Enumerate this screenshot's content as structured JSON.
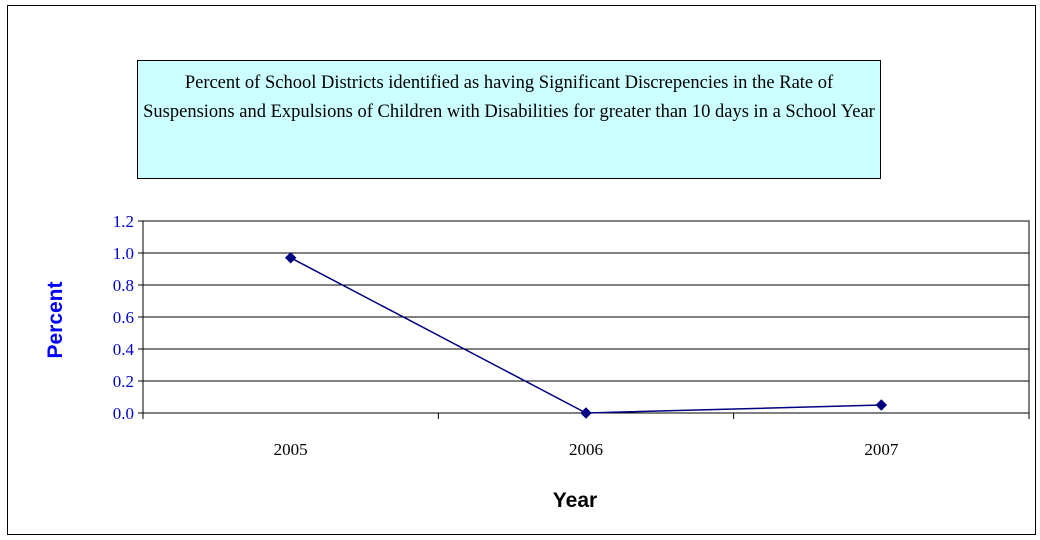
{
  "chart_data": {
    "type": "line",
    "title": "Percent of School Districts identified as having Significant Discrepencies in the Rate of Suspensions and Expulsions of Children with Disabilities for greater than 10 days in a School Year",
    "xlabel": "Year",
    "ylabel": "Percent",
    "categories": [
      "2005",
      "2006",
      "2007"
    ],
    "series": [
      {
        "values": [
          0.97,
          0.0,
          0.05
        ]
      }
    ],
    "ylim": [
      0.0,
      1.2
    ],
    "yticks": [
      "0.0",
      "0.2",
      "0.4",
      "0.6",
      "0.8",
      "1.0",
      "1.2"
    ],
    "grid": true,
    "legend": "none",
    "colors": {
      "series": "#000080",
      "ytick": "#0000cc",
      "ylabel": "#0000ff",
      "title_bg": "#ccffff"
    }
  }
}
